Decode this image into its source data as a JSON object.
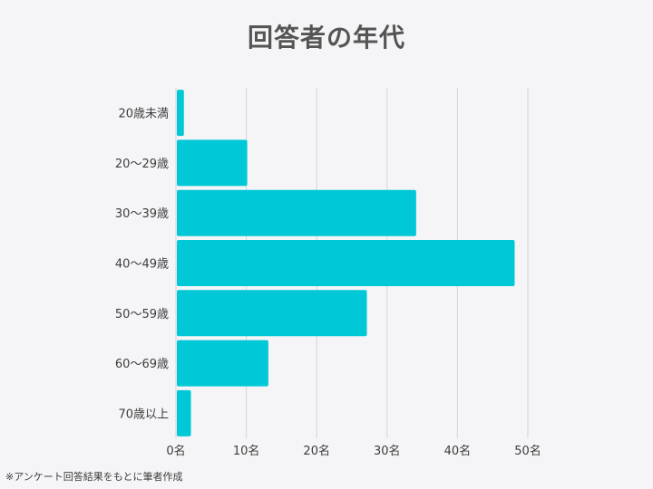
{
  "page": {
    "title": "回答者の年代",
    "footnote": "※アンケート回答結果をもとに筆者作成"
  },
  "chart_data": {
    "type": "bar",
    "orientation": "horizontal",
    "title": "回答者の年代",
    "categories": [
      "20歳未満",
      "20～29歳",
      "30～39歳",
      "40～49歳",
      "50～59歳",
      "60～69歳",
      "70歳以上"
    ],
    "values": [
      1,
      10,
      34,
      48,
      27,
      13,
      2
    ],
    "xlim": [
      0,
      50
    ],
    "xticks": [
      0,
      10,
      20,
      30,
      40,
      50
    ],
    "xtick_labels": [
      "0名",
      "10名",
      "20名",
      "30名",
      "40名",
      "50名"
    ],
    "grid": "vertical",
    "bar_color": "#00c8d7",
    "grid_color": "#d4d4d8"
  }
}
